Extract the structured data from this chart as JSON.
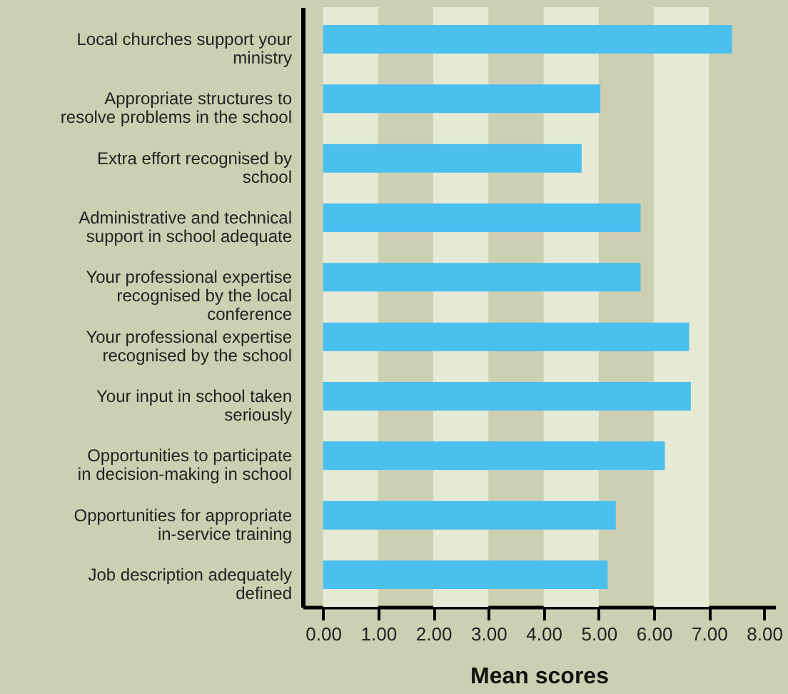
{
  "chart_data": {
    "type": "bar",
    "orientation": "horizontal",
    "xlabel": "Mean scores",
    "categories": [
      "Local churches support your ministry",
      "Appropriate structures to resolve problems in the school",
      "Extra effort recognised by school",
      "Administrative and technical support in school adequate",
      "Your professional expertise recognised by the local conference",
      "Your professional expertise recognised by the school",
      "Your input in school taken seriously",
      "Opportunities to participate in decision-making in school",
      "Opportunities for appropriate in-service training",
      "Job description adequately defined"
    ],
    "values": [
      7.42,
      5.03,
      4.69,
      5.76,
      5.76,
      6.64,
      6.67,
      6.2,
      5.31,
      5.16
    ],
    "color": "#4bbfee",
    "xlim": [
      -0.37,
      8.2
    ],
    "xticks": [
      {
        "value": 0,
        "label": "0.00"
      },
      {
        "value": 1,
        "label": "1.00"
      },
      {
        "value": 2,
        "label": "2.00"
      },
      {
        "value": 3,
        "label": "3.00"
      },
      {
        "value": 4,
        "label": "4.00"
      },
      {
        "value": 5,
        "label": "5.00"
      },
      {
        "value": 6,
        "label": "6.00"
      },
      {
        "value": 7,
        "label": "7.00"
      },
      {
        "value": 8,
        "label": "8.00"
      }
    ],
    "bands": [
      {
        "axis": "x",
        "from": 0,
        "to": 1,
        "color": "#e4ead4"
      },
      {
        "axis": "x",
        "from": 2,
        "to": 3,
        "color": "#e4ead4"
      },
      {
        "axis": "x",
        "from": 4,
        "to": 5,
        "color": "#e4ead4"
      },
      {
        "axis": "x",
        "from": 6,
        "to": 7,
        "color": "#e4ead4"
      }
    ],
    "grid": false
  }
}
